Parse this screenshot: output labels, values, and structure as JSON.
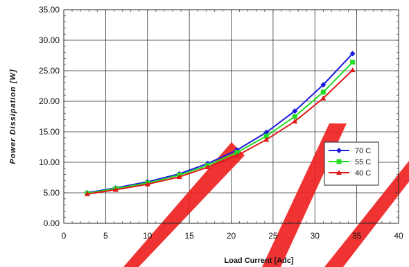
{
  "chart_data": {
    "type": "line",
    "title": "",
    "xlabel": "Load Current [Adc]",
    "ylabel": "Power Dissipation [W]",
    "xlim": [
      0,
      40
    ],
    "ylim": [
      0,
      35
    ],
    "x_ticks": [
      "0",
      "5",
      "10",
      "15",
      "20",
      "25",
      "30",
      "35",
      "40"
    ],
    "y_ticks": [
      "0.00",
      "5.00",
      "10.00",
      "15.00",
      "20.00",
      "25.00",
      "30.00",
      "35.00"
    ],
    "grid": true,
    "legend_position": "right",
    "x": [
      2.8,
      6.2,
      10.0,
      13.8,
      17.2,
      20.7,
      24.2,
      27.6,
      31.0,
      34.5
    ],
    "series": [
      {
        "name": "70 C",
        "color": "#1a1adf",
        "marker": "diamond",
        "values": [
          5.0,
          5.8,
          6.8,
          8.1,
          9.8,
          12.0,
          14.9,
          18.4,
          22.7,
          27.8
        ]
      },
      {
        "name": "55 C",
        "color": "#22dd22",
        "marker": "square",
        "values": [
          4.9,
          5.7,
          6.6,
          7.9,
          9.5,
          11.6,
          14.3,
          17.5,
          21.5,
          26.4
        ]
      },
      {
        "name": "40 C",
        "color": "#e01818",
        "marker": "triangle",
        "values": [
          4.8,
          5.5,
          6.4,
          7.6,
          9.2,
          11.1,
          13.7,
          16.7,
          20.5,
          25.1
        ]
      }
    ]
  }
}
